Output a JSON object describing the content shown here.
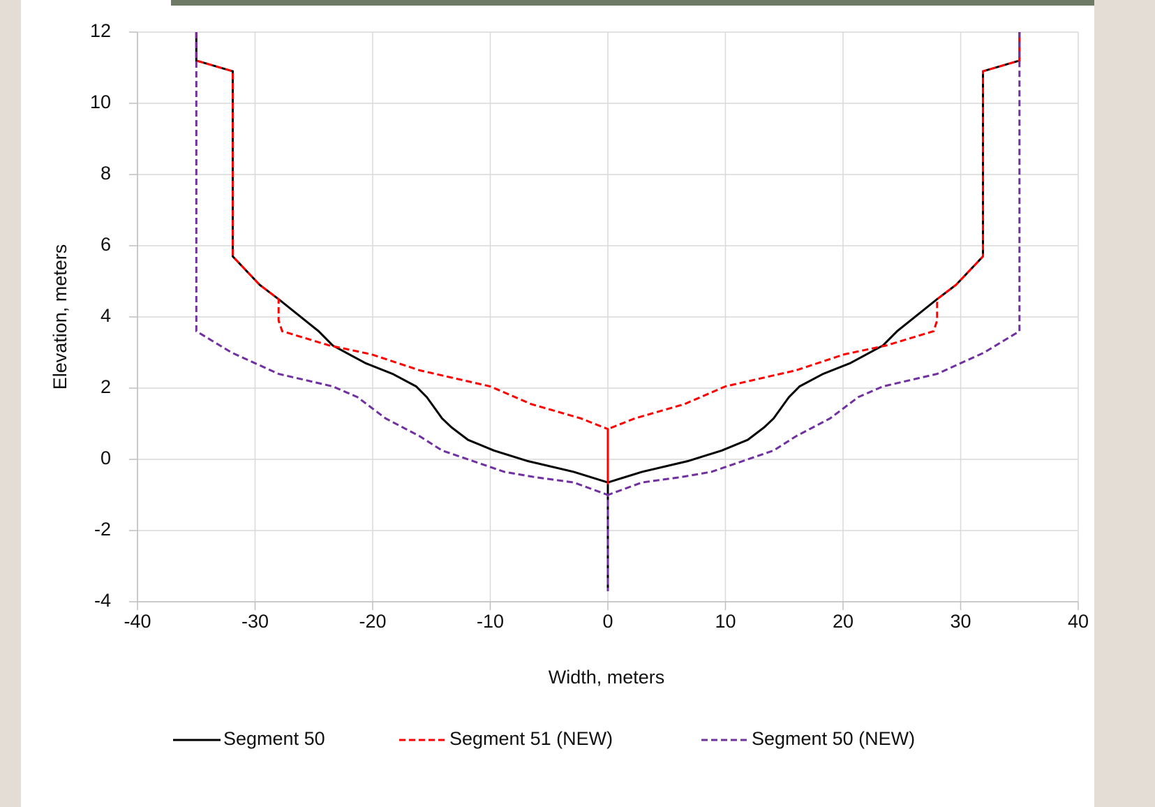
{
  "chart_data": {
    "type": "line",
    "xlabel": "Width, meters",
    "ylabel": "Elevation, meters",
    "xlim": [
      -40,
      40
    ],
    "xticks": [
      -40,
      -30,
      -20,
      -10,
      0,
      10,
      20,
      30,
      40
    ],
    "ylim": [
      -4,
      12
    ],
    "yticks": [
      -4,
      -2,
      0,
      2,
      4,
      6,
      8,
      10,
      12
    ],
    "grid": true,
    "legend": "bottom",
    "series": [
      {
        "name": "Segment 50",
        "color": "#000000",
        "dash": "solid",
        "x": [
          -35,
          -35,
          -31.9,
          -31.9,
          -29.6,
          -28,
          -24.6,
          -23.4,
          -20.6,
          -18.3,
          -16.3,
          -15.4,
          -14.1,
          -13.3,
          -11.9,
          -9.7,
          -6.8,
          -2.9,
          0,
          0,
          0,
          2.9,
          6.8,
          9.7,
          11.9,
          13.3,
          14.1,
          15.4,
          16.3,
          18.3,
          20.6,
          23.4,
          24.6,
          28,
          29.6,
          31.9,
          31.9,
          35,
          35
        ],
        "values": [
          12,
          11.2,
          10.9,
          5.7,
          4.9,
          4.5,
          3.6,
          3.2,
          2.7,
          2.4,
          2.05,
          1.75,
          1.15,
          0.9,
          0.55,
          0.25,
          -0.05,
          -0.35,
          -0.65,
          -3.7,
          -0.65,
          -0.35,
          -0.05,
          0.25,
          0.55,
          0.9,
          1.15,
          1.75,
          2.05,
          2.4,
          2.7,
          3.2,
          3.6,
          4.5,
          4.9,
          5.7,
          10.9,
          11.2,
          12
        ]
      },
      {
        "name": "Segment 51 (NEW)",
        "color": "#ff0000",
        "dash": "dashed",
        "x": [
          -35,
          -35,
          -31.9,
          -31.9,
          -29.6,
          -28,
          -28,
          -27.7,
          -23.7,
          -20.1,
          -16,
          -10,
          -6.5,
          -2.3,
          0,
          0,
          0,
          2.3,
          6.5,
          10,
          16,
          20.1,
          23.7,
          27.7,
          28,
          28,
          29.6,
          31.9,
          31.9,
          35,
          35
        ],
        "values": [
          12,
          11.2,
          10.9,
          5.7,
          4.9,
          4.5,
          3.9,
          3.6,
          3.2,
          2.95,
          2.5,
          2.05,
          1.55,
          1.15,
          0.85,
          -0.7,
          0.85,
          1.15,
          1.55,
          2.05,
          2.5,
          2.95,
          3.2,
          3.6,
          3.9,
          4.5,
          4.9,
          5.7,
          10.9,
          11.2,
          12
        ]
      },
      {
        "name": "Segment 50 (NEW)",
        "color": "#7030a0",
        "dash": "dashed",
        "x": [
          -35,
          -35,
          -32,
          -28,
          -23.4,
          -21.3,
          -18.9,
          -16,
          -14.1,
          -11.9,
          -8.8,
          -6.2,
          -2.9,
          0,
          0,
          0,
          2.9,
          6.2,
          8.8,
          11.9,
          14.1,
          16,
          18.9,
          21.3,
          23.4,
          28,
          32,
          35,
          35
        ],
        "values": [
          12,
          3.6,
          3.0,
          2.4,
          2.05,
          1.75,
          1.15,
          0.65,
          0.25,
          0,
          -0.35,
          -0.5,
          -0.65,
          -1.0,
          -3.7,
          -1.0,
          -0.65,
          -0.5,
          -0.35,
          0,
          0.25,
          0.65,
          1.15,
          1.75,
          2.05,
          2.4,
          3.0,
          3.6,
          12
        ]
      }
    ]
  }
}
